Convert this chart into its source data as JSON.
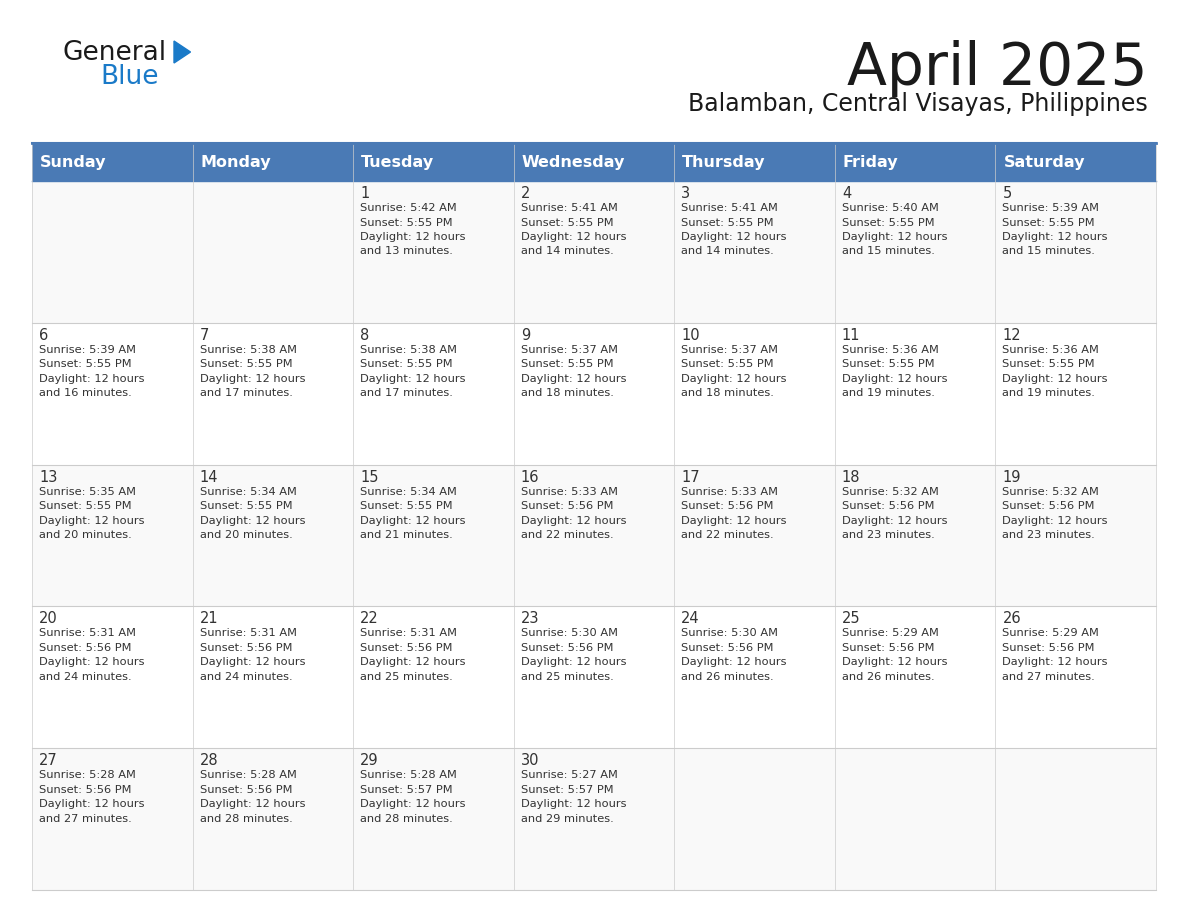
{
  "title": "April 2025",
  "subtitle": "Balamban, Central Visayas, Philippines",
  "days_of_week": [
    "Sunday",
    "Monday",
    "Tuesday",
    "Wednesday",
    "Thursday",
    "Friday",
    "Saturday"
  ],
  "header_bg_color": "#4a7ab5",
  "header_text_color": "#ffffff",
  "cell_bg_color_even": "#f9f9f9",
  "cell_bg_color_odd": "#ffffff",
  "border_color": "#4a7ab5",
  "row_border_color": "#cccccc",
  "title_color": "#1a1a1a",
  "subtitle_color": "#1a1a1a",
  "text_color": "#333333",
  "logo_black_color": "#1a1a1a",
  "logo_blue_color": "#1a7ac8",
  "calendar_data": [
    [
      {
        "day": "",
        "sunrise": "",
        "sunset": "",
        "daylight": ""
      },
      {
        "day": "",
        "sunrise": "",
        "sunset": "",
        "daylight": ""
      },
      {
        "day": "1",
        "sunrise": "5:42 AM",
        "sunset": "5:55 PM",
        "daylight": "12 hours and 13 minutes."
      },
      {
        "day": "2",
        "sunrise": "5:41 AM",
        "sunset": "5:55 PM",
        "daylight": "12 hours and 14 minutes."
      },
      {
        "day": "3",
        "sunrise": "5:41 AM",
        "sunset": "5:55 PM",
        "daylight": "12 hours and 14 minutes."
      },
      {
        "day": "4",
        "sunrise": "5:40 AM",
        "sunset": "5:55 PM",
        "daylight": "12 hours and 15 minutes."
      },
      {
        "day": "5",
        "sunrise": "5:39 AM",
        "sunset": "5:55 PM",
        "daylight": "12 hours and 15 minutes."
      }
    ],
    [
      {
        "day": "6",
        "sunrise": "5:39 AM",
        "sunset": "5:55 PM",
        "daylight": "12 hours and 16 minutes."
      },
      {
        "day": "7",
        "sunrise": "5:38 AM",
        "sunset": "5:55 PM",
        "daylight": "12 hours and 17 minutes."
      },
      {
        "day": "8",
        "sunrise": "5:38 AM",
        "sunset": "5:55 PM",
        "daylight": "12 hours and 17 minutes."
      },
      {
        "day": "9",
        "sunrise": "5:37 AM",
        "sunset": "5:55 PM",
        "daylight": "12 hours and 18 minutes."
      },
      {
        "day": "10",
        "sunrise": "5:37 AM",
        "sunset": "5:55 PM",
        "daylight": "12 hours and 18 minutes."
      },
      {
        "day": "11",
        "sunrise": "5:36 AM",
        "sunset": "5:55 PM",
        "daylight": "12 hours and 19 minutes."
      },
      {
        "day": "12",
        "sunrise": "5:36 AM",
        "sunset": "5:55 PM",
        "daylight": "12 hours and 19 minutes."
      }
    ],
    [
      {
        "day": "13",
        "sunrise": "5:35 AM",
        "sunset": "5:55 PM",
        "daylight": "12 hours and 20 minutes."
      },
      {
        "day": "14",
        "sunrise": "5:34 AM",
        "sunset": "5:55 PM",
        "daylight": "12 hours and 20 minutes."
      },
      {
        "day": "15",
        "sunrise": "5:34 AM",
        "sunset": "5:55 PM",
        "daylight": "12 hours and 21 minutes."
      },
      {
        "day": "16",
        "sunrise": "5:33 AM",
        "sunset": "5:56 PM",
        "daylight": "12 hours and 22 minutes."
      },
      {
        "day": "17",
        "sunrise": "5:33 AM",
        "sunset": "5:56 PM",
        "daylight": "12 hours and 22 minutes."
      },
      {
        "day": "18",
        "sunrise": "5:32 AM",
        "sunset": "5:56 PM",
        "daylight": "12 hours and 23 minutes."
      },
      {
        "day": "19",
        "sunrise": "5:32 AM",
        "sunset": "5:56 PM",
        "daylight": "12 hours and 23 minutes."
      }
    ],
    [
      {
        "day": "20",
        "sunrise": "5:31 AM",
        "sunset": "5:56 PM",
        "daylight": "12 hours and 24 minutes."
      },
      {
        "day": "21",
        "sunrise": "5:31 AM",
        "sunset": "5:56 PM",
        "daylight": "12 hours and 24 minutes."
      },
      {
        "day": "22",
        "sunrise": "5:31 AM",
        "sunset": "5:56 PM",
        "daylight": "12 hours and 25 minutes."
      },
      {
        "day": "23",
        "sunrise": "5:30 AM",
        "sunset": "5:56 PM",
        "daylight": "12 hours and 25 minutes."
      },
      {
        "day": "24",
        "sunrise": "5:30 AM",
        "sunset": "5:56 PM",
        "daylight": "12 hours and 26 minutes."
      },
      {
        "day": "25",
        "sunrise": "5:29 AM",
        "sunset": "5:56 PM",
        "daylight": "12 hours and 26 minutes."
      },
      {
        "day": "26",
        "sunrise": "5:29 AM",
        "sunset": "5:56 PM",
        "daylight": "12 hours and 27 minutes."
      }
    ],
    [
      {
        "day": "27",
        "sunrise": "5:28 AM",
        "sunset": "5:56 PM",
        "daylight": "12 hours and 27 minutes."
      },
      {
        "day": "28",
        "sunrise": "5:28 AM",
        "sunset": "5:56 PM",
        "daylight": "12 hours and 28 minutes."
      },
      {
        "day": "29",
        "sunrise": "5:28 AM",
        "sunset": "5:57 PM",
        "daylight": "12 hours and 28 minutes."
      },
      {
        "day": "30",
        "sunrise": "5:27 AM",
        "sunset": "5:57 PM",
        "daylight": "12 hours and 29 minutes."
      },
      {
        "day": "",
        "sunrise": "",
        "sunset": "",
        "daylight": ""
      },
      {
        "day": "",
        "sunrise": "",
        "sunset": "",
        "daylight": ""
      },
      {
        "day": "",
        "sunrise": "",
        "sunset": "",
        "daylight": ""
      }
    ]
  ]
}
